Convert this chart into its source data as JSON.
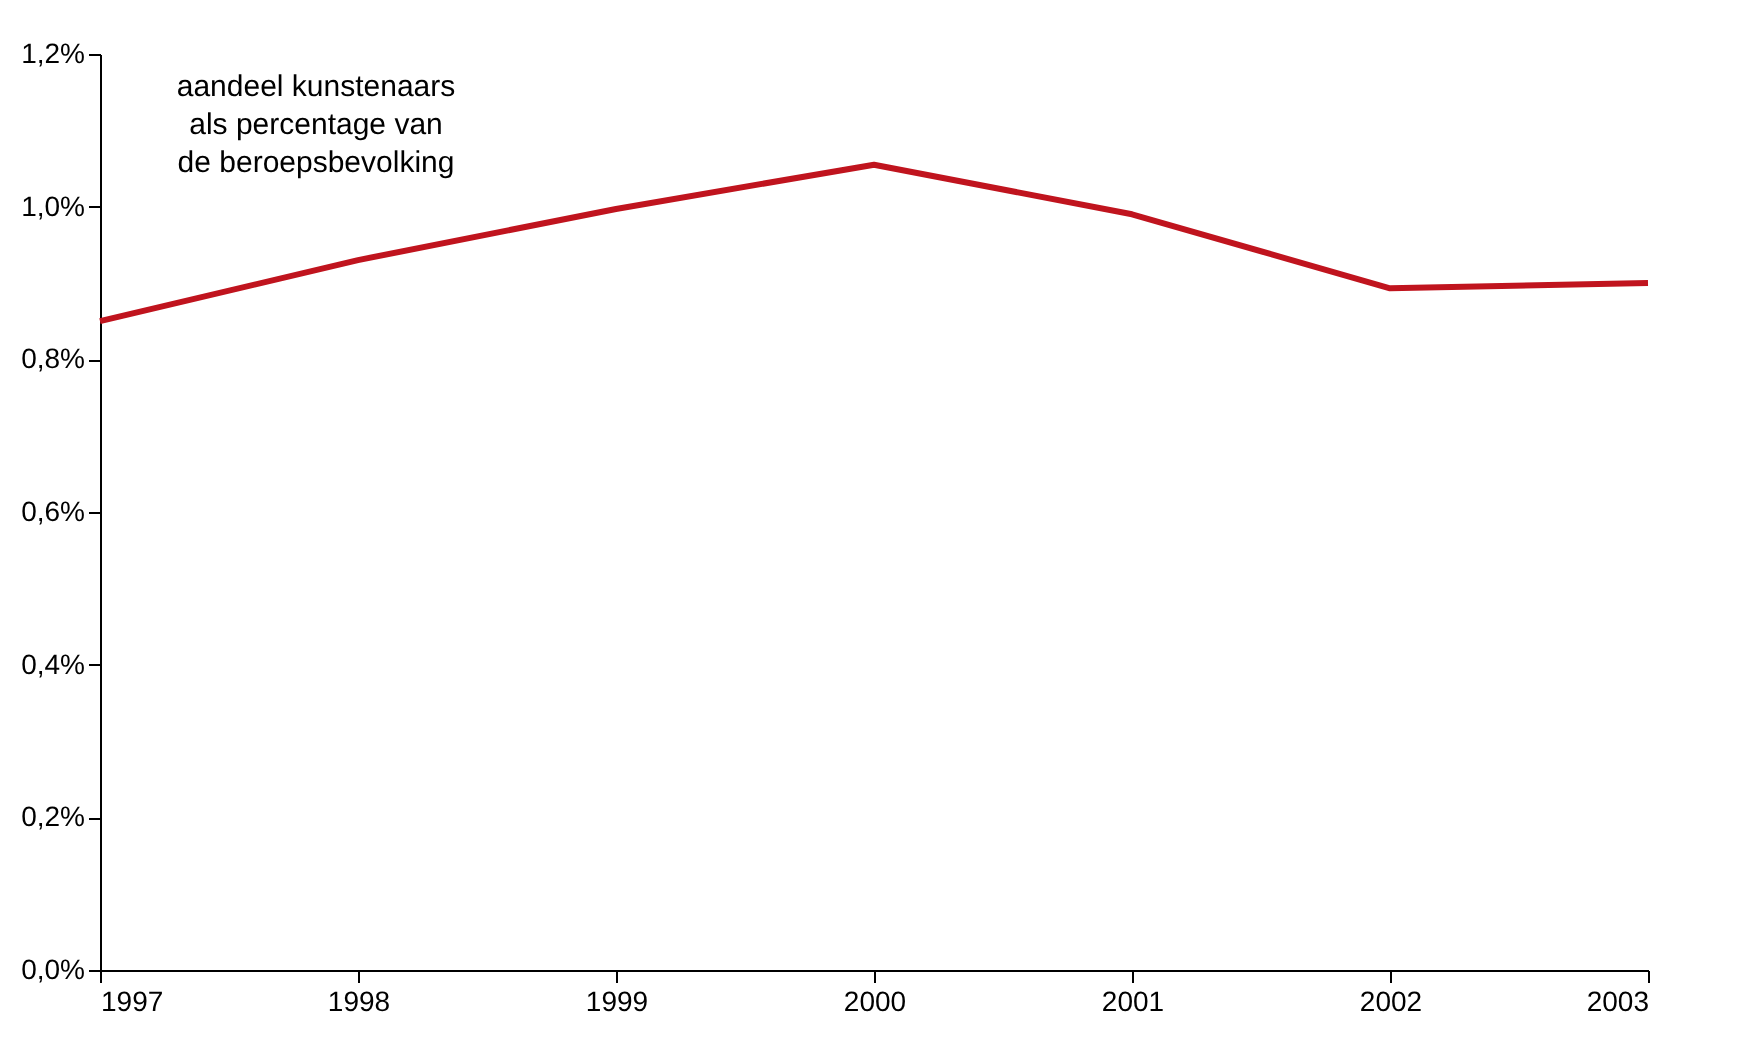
{
  "chart_data": {
    "type": "line",
    "x": [
      1997,
      1998,
      1999,
      2000,
      2001,
      2002,
      2003
    ],
    "series": [
      {
        "color": "#c0141e",
        "values": [
          0.85,
          0.93,
          0.997,
          1.055,
          0.99,
          0.893,
          0.9
        ]
      }
    ],
    "xlim": [
      1997,
      2003
    ],
    "xticks": [
      1997,
      1998,
      1999,
      2000,
      2001,
      2002,
      2003
    ],
    "ylim": [
      0,
      1.2
    ],
    "yticks": [
      {
        "value": 0,
        "label": "0,0%"
      },
      {
        "value": 0.2,
        "label": "0,2%"
      },
      {
        "value": 0.4,
        "label": "0,4%"
      },
      {
        "value": 0.6,
        "label": "0,6%"
      },
      {
        "value": 0.8,
        "label": "0,8%"
      },
      {
        "value": 1.0,
        "label": "1,0%"
      },
      {
        "value": 1.2,
        "label": "1,2%"
      }
    ],
    "annotations": [
      "aandeel kunstenaars\nals percentage van\nde beroepsbevolking"
    ],
    "grid": false,
    "marker": "none",
    "line_style": "solid"
  }
}
